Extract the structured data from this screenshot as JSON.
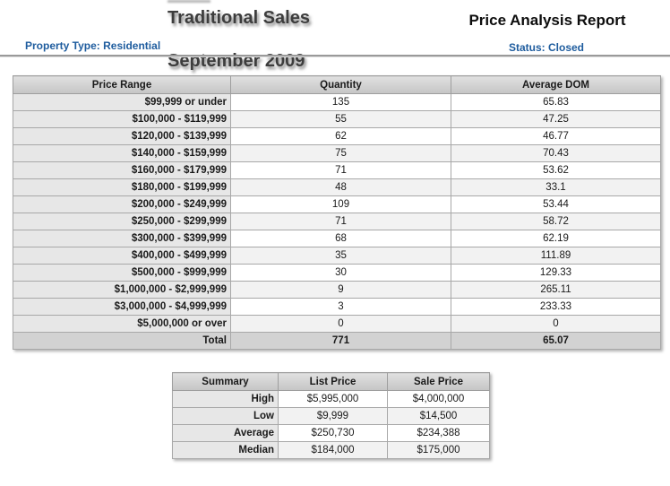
{
  "header": {
    "title_line1": "Traditional Sales",
    "title_line2": "September 2009",
    "report_title": "Price Analysis Report",
    "property_type_label": "Property Type: Residential",
    "status_label": "Status: Closed"
  },
  "colors": {
    "accent_blue": "#1E5C9E",
    "table_header_gray": "#CDCDCD",
    "label_column_gray": "#E7E7E7",
    "total_row_gray": "#D2D2D2"
  },
  "main_table": {
    "headers": [
      "Price Range",
      "Quantity",
      "Average DOM"
    ],
    "rows": [
      {
        "range": "$99,999 or under",
        "quantity": "135",
        "dom": "65.83"
      },
      {
        "range": "$100,000 - $119,999",
        "quantity": "55",
        "dom": "47.25"
      },
      {
        "range": "$120,000 - $139,999",
        "quantity": "62",
        "dom": "46.77"
      },
      {
        "range": "$140,000 - $159,999",
        "quantity": "75",
        "dom": "70.43"
      },
      {
        "range": "$160,000 - $179,999",
        "quantity": "71",
        "dom": "53.62"
      },
      {
        "range": "$180,000 - $199,999",
        "quantity": "48",
        "dom": "33.1"
      },
      {
        "range": "$200,000 - $249,999",
        "quantity": "109",
        "dom": "53.44"
      },
      {
        "range": "$250,000 - $299,999",
        "quantity": "71",
        "dom": "58.72"
      },
      {
        "range": "$300,000 - $399,999",
        "quantity": "68",
        "dom": "62.19"
      },
      {
        "range": "$400,000 - $499,999",
        "quantity": "35",
        "dom": "111.89"
      },
      {
        "range": "$500,000 - $999,999",
        "quantity": "30",
        "dom": "129.33"
      },
      {
        "range": "$1,000,000 - $2,999,999",
        "quantity": "9",
        "dom": "265.11"
      },
      {
        "range": "$3,000,000 - $4,999,999",
        "quantity": "3",
        "dom": "233.33"
      },
      {
        "range": "$5,000,000 or over",
        "quantity": "0",
        "dom": "0"
      }
    ],
    "total": {
      "label": "Total",
      "quantity": "771",
      "dom": "65.07"
    }
  },
  "summary_table": {
    "headers": [
      "Summary",
      "List Price",
      "Sale Price"
    ],
    "rows": [
      {
        "label": "High",
        "list": "$5,995,000",
        "sale": "$4,000,000"
      },
      {
        "label": "Low",
        "list": "$9,999",
        "sale": "$14,500"
      },
      {
        "label": "Average",
        "list": "$250,730",
        "sale": "$234,388"
      },
      {
        "label": "Median",
        "list": "$184,000",
        "sale": "$175,000"
      }
    ]
  }
}
